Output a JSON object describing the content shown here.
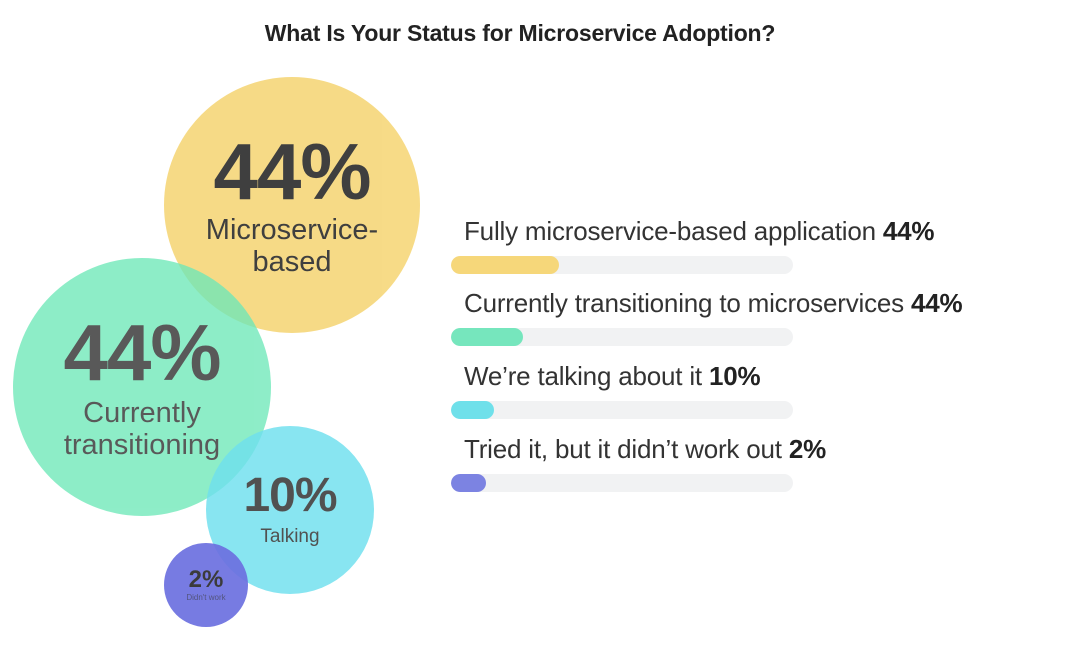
{
  "title": "What Is Your Status for Microservice Adoption?",
  "chart_data": {
    "type": "bar",
    "title": "What Is Your Status for Microservice Adoption?",
    "categories": [
      "Fully microservice-based application",
      "Currently transitioning to microservices",
      "We’re talking about it",
      "Tried it, but it didn’t work out"
    ],
    "values": [
      44,
      44,
      10,
      2
    ],
    "value_labels": [
      "44%",
      "44%",
      "10%",
      "2%"
    ],
    "colors": [
      "#f6d77a",
      "#76e6bd",
      "#6fe0ea",
      "#7c83e2"
    ],
    "xlim": [
      0,
      100
    ],
    "grid": false,
    "legend": "none"
  },
  "bubbles": [
    {
      "pct": "44%",
      "label": "Microservice-\nbased",
      "color": "#f6d77a",
      "opacity": 0.9
    },
    {
      "pct": "44%",
      "label": "Currently\ntransitioning",
      "color": "#6ee8b8",
      "opacity": 0.78
    },
    {
      "pct": "10%",
      "label": "Talking",
      "color": "#6fe0ee",
      "opacity": 0.82
    },
    {
      "pct": "2%",
      "label": "Didn't work",
      "color": "#6c70e0",
      "opacity": 0.92
    }
  ]
}
